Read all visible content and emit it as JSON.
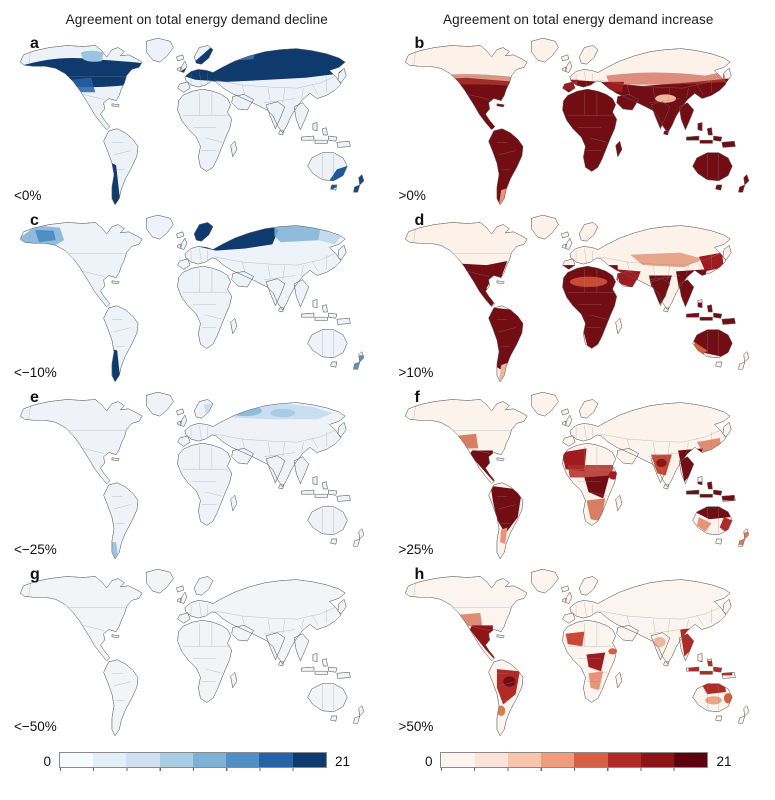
{
  "figure": {
    "columns": [
      {
        "title": "Agreement on total energy demand decline"
      },
      {
        "title": "Agreement on total energy demand increase"
      }
    ],
    "panels": [
      {
        "id": "a",
        "threshold": "<0%",
        "column": "decline"
      },
      {
        "id": "b",
        "threshold": ">0%",
        "column": "increase"
      },
      {
        "id": "c",
        "threshold": "<−10%",
        "column": "decline"
      },
      {
        "id": "d",
        "threshold": ">10%",
        "column": "increase"
      },
      {
        "id": "e",
        "threshold": "<−25%",
        "column": "decline"
      },
      {
        "id": "f",
        "threshold": ">25%",
        "column": "increase"
      },
      {
        "id": "g",
        "threshold": "<−50%",
        "column": "decline"
      },
      {
        "id": "h",
        "threshold": ">50%",
        "column": "increase"
      }
    ],
    "colorbars": [
      {
        "side": "left",
        "min": "0",
        "max": "21",
        "palette": [
          "#f7fbff",
          "#e3eef7",
          "#cfe1f2",
          "#a8cce4",
          "#7fb0d6",
          "#4f8fc4",
          "#2563a8",
          "#0e3a6d"
        ]
      },
      {
        "side": "right",
        "min": "0",
        "max": "21",
        "palette": [
          "#fff5f0",
          "#fde4d8",
          "#f9c6ad",
          "#f09c7d",
          "#d95f44",
          "#b02a26",
          "#8f1418",
          "#5e000d"
        ]
      }
    ]
  }
}
